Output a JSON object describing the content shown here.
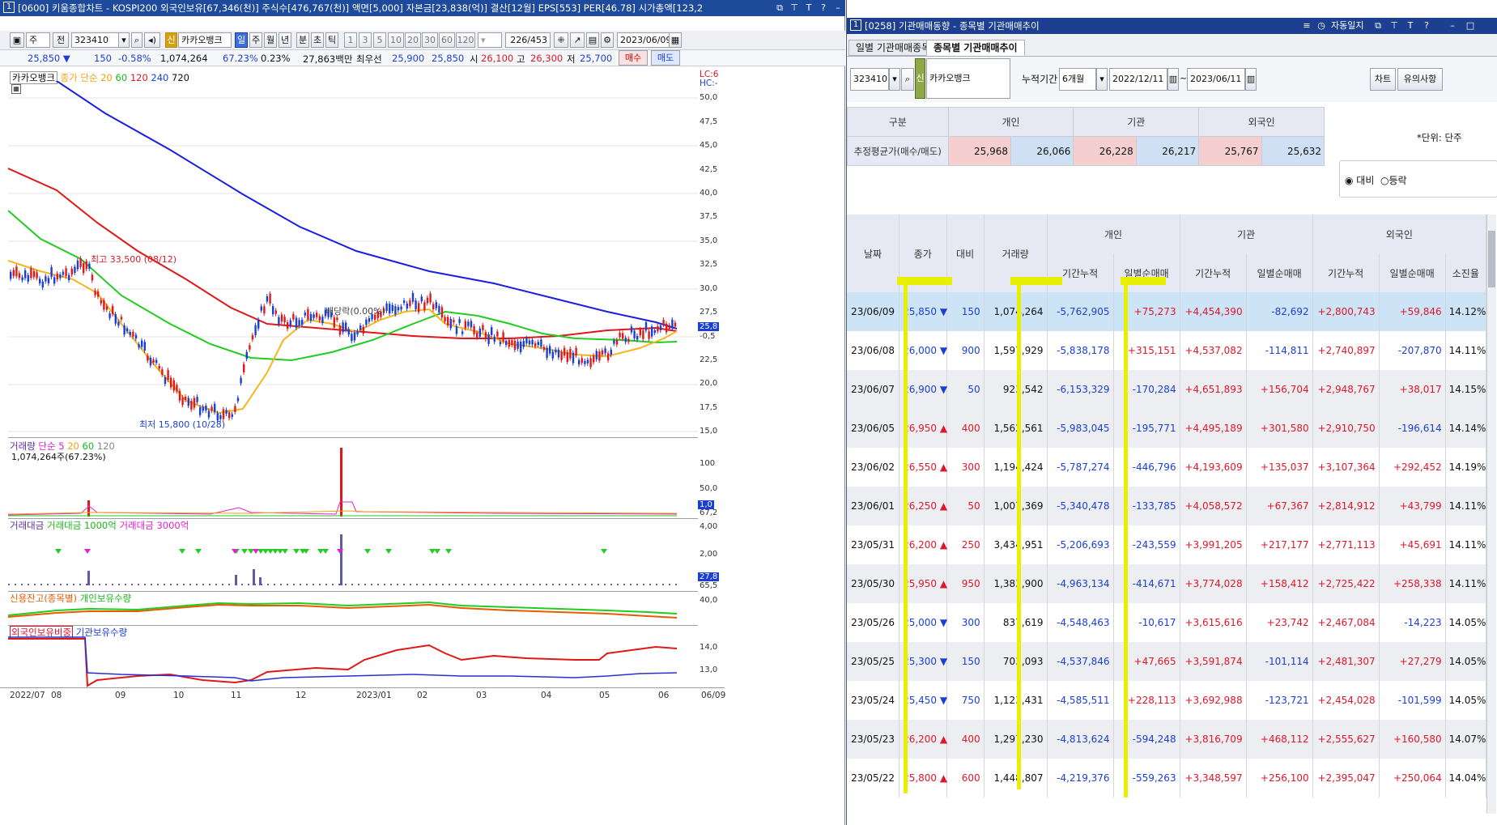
{
  "left_window": {
    "title": "[0600] 키움종합차트 - KOSPI200 외국인보유[67,346(천)] 주식수[476,767(천)] 액면[5,000] 자본금[23,838(억)] 결산[12월] EPS[553] PER[46.78] 시가총액[123,2",
    "badge": "1",
    "toolbar": {
      "type_sel": "주",
      "prev_label": "전",
      "code": "323410",
      "stock_name": "카카오뱅크",
      "sin_label": "신",
      "periods": [
        "일",
        "주",
        "월",
        "년",
        "분",
        "초",
        "틱"
      ],
      "active_period": "일",
      "intervals": [
        "1",
        "3",
        "5",
        "10",
        "20",
        "30",
        "60",
        "120"
      ],
      "count": "226/453",
      "date": "2023/06/09"
    },
    "quote": {
      "price": "25,850 ▼",
      "change": "150",
      "change_pct": "-0.58%",
      "volume": "1,074,264",
      "vol_ratio": "67.23%",
      "turnover": "0.23%",
      "amount": "27,863백만",
      "best_label": "최우선",
      "best_ask": "25,900",
      "best_bid": "25,850",
      "open_label": "시",
      "open": "26,100",
      "high_label": "고",
      "high": "26,300",
      "low_label": "저",
      "low": "25,700",
      "buy_label": "매수",
      "sell_label": "매도"
    },
    "legend_main": {
      "name": "카카오뱅크",
      "close_label": "종가",
      "method": "단순",
      "ma": [
        "20",
        "60",
        "120",
        "240",
        "720"
      ]
    },
    "annotations": {
      "high": "최고 33,500 (08/12)",
      "low": "최저 15,800 (10/28)",
      "dividend": "배당락(0.00%)"
    },
    "lc_label": "LC:6",
    "hc_label": "HC:-",
    "price_axis": [
      "50,0",
      "47,5",
      "45,0",
      "42,5",
      "40,0",
      "37,5",
      "35,0",
      "32,5",
      "30,0",
      "27,5",
      "25,0",
      "-0,5",
      "22,5",
      "20,0",
      "17,5",
      "15,0"
    ],
    "last_price_tag": "25,8",
    "volume_panel": {
      "label": "거래량",
      "method": "단순",
      "ma": [
        "5",
        "20",
        "60",
        "120"
      ],
      "value": "1,074,264주(67.23%)",
      "axis": [
        "100",
        "50,0",
        "1,0",
        "67,2"
      ]
    },
    "amount_panel": {
      "label1": "거래대금",
      "label2": "거래대금 1000억",
      "label3": "거래대금 3000억",
      "axis": [
        "4,00",
        "2,00",
        "27,8",
        "65,5"
      ]
    },
    "credit_panel": {
      "label1": "신용잔고(종목별)",
      "label2": "개인보유수량",
      "axis": [
        "40,0"
      ]
    },
    "foreign_panel": {
      "label1": "외국인보유비중",
      "label2": "기관보유수량",
      "axis": [
        "14,0",
        "13,0"
      ]
    },
    "x_axis": [
      "2022/07",
      "08",
      "09",
      "10",
      "11",
      "12",
      "2023/01",
      "02",
      "03",
      "04",
      "05",
      "06",
      "06/09"
    ]
  },
  "right_window": {
    "title": "[0258] 기관매매동향 - 종목별 기관매매추이",
    "badge": "1",
    "tabs": [
      "일별 기관매매종목",
      "종목별 기관매매추이"
    ],
    "active_tab": "종목별 기관매매추이",
    "menu_label": "자동일지",
    "code": "323410",
    "sin_label": "신",
    "stock_name": "카카오뱅크",
    "period_label": "누적기간",
    "period": "6개월",
    "start_date": "2022/12/11",
    "end_date": "2023/06/11",
    "tilde": "~",
    "chart_btn": "차트",
    "notice_btn": "유의사항",
    "unit_label": "*단위: 단주",
    "radio1": "대비",
    "radio2": "등락",
    "summary": {
      "header": [
        "구분",
        "개인",
        "기관",
        "외국인"
      ],
      "row_label": "추정평균가(매수/매도)",
      "values": [
        "25,968",
        "26,066",
        "26,228",
        "26,217",
        "25,767",
        "25,632"
      ]
    },
    "table": {
      "headers": [
        "날짜",
        "종가",
        "대비",
        "거래량",
        "개인",
        "기관",
        "외국인"
      ],
      "sub_headers": [
        "기간누적",
        "일별순매매",
        "기간누적",
        "일별순매매",
        "기간누적",
        "일별순매매",
        "소진율"
      ],
      "rows": [
        {
          "date": "23/06/09",
          "close": "25,850",
          "dir": "down",
          "chg": "150",
          "vol": "1,074,264",
          "p_cum": "-5,762,905",
          "p_day": "+75,273",
          "i_cum": "+4,454,390",
          "i_day": "-82,692",
          "f_cum": "+2,800,743",
          "f_day": "+59,846",
          "ratio": "14.12%"
        },
        {
          "date": "23/06/08",
          "close": "26,000",
          "dir": "down",
          "chg": "900",
          "vol": "1,597,929",
          "p_cum": "-5,838,178",
          "p_day": "+315,151",
          "i_cum": "+4,537,082",
          "i_day": "-114,811",
          "f_cum": "+2,740,897",
          "f_day": "-207,870",
          "ratio": "14.11%"
        },
        {
          "date": "23/06/07",
          "close": "26,900",
          "dir": "down",
          "chg": "50",
          "vol": "923,542",
          "p_cum": "-6,153,329",
          "p_day": "-170,284",
          "i_cum": "+4,651,893",
          "i_day": "+156,704",
          "f_cum": "+2,948,767",
          "f_day": "+38,017",
          "ratio": "14.15%"
        },
        {
          "date": "23/06/05",
          "close": "26,950",
          "dir": "up",
          "chg": "400",
          "vol": "1,562,561",
          "p_cum": "-5,983,045",
          "p_day": "-195,771",
          "i_cum": "+4,495,189",
          "i_day": "+301,580",
          "f_cum": "+2,910,750",
          "f_day": "-196,614",
          "ratio": "14.14%"
        },
        {
          "date": "23/06/02",
          "close": "26,550",
          "dir": "up",
          "chg": "300",
          "vol": "1,194,424",
          "p_cum": "-5,787,274",
          "p_day": "-446,796",
          "i_cum": "+4,193,609",
          "i_day": "+135,037",
          "f_cum": "+3,107,364",
          "f_day": "+292,452",
          "ratio": "14.19%"
        },
        {
          "date": "23/06/01",
          "close": "26,250",
          "dir": "up",
          "chg": "50",
          "vol": "1,007,369",
          "p_cum": "-5,340,478",
          "p_day": "-133,785",
          "i_cum": "+4,058,572",
          "i_day": "+67,367",
          "f_cum": "+2,814,912",
          "f_day": "+43,799",
          "ratio": "14.11%"
        },
        {
          "date": "23/05/31",
          "close": "26,200",
          "dir": "up",
          "chg": "250",
          "vol": "3,434,951",
          "p_cum": "-5,206,693",
          "p_day": "-243,559",
          "i_cum": "+3,991,205",
          "i_day": "+217,177",
          "f_cum": "+2,771,113",
          "f_day": "+45,691",
          "ratio": "14.11%"
        },
        {
          "date": "23/05/30",
          "close": "25,950",
          "dir": "up",
          "chg": "950",
          "vol": "1,383,900",
          "p_cum": "-4,963,134",
          "p_day": "-414,671",
          "i_cum": "+3,774,028",
          "i_day": "+158,412",
          "f_cum": "+2,725,422",
          "f_day": "+258,338",
          "ratio": "14.11%"
        },
        {
          "date": "23/05/26",
          "close": "25,000",
          "dir": "down",
          "chg": "300",
          "vol": "837,619",
          "p_cum": "-4,548,463",
          "p_day": "-10,617",
          "i_cum": "+3,615,616",
          "i_day": "+23,742",
          "f_cum": "+2,467,084",
          "f_day": "-14,223",
          "ratio": "14.05%"
        },
        {
          "date": "23/05/25",
          "close": "25,300",
          "dir": "down",
          "chg": "150",
          "vol": "703,093",
          "p_cum": "-4,537,846",
          "p_day": "+47,665",
          "i_cum": "+3,591,874",
          "i_day": "-101,114",
          "f_cum": "+2,481,307",
          "f_day": "+27,279",
          "ratio": "14.05%"
        },
        {
          "date": "23/05/24",
          "close": "25,450",
          "dir": "down",
          "chg": "750",
          "vol": "1,123,431",
          "p_cum": "-4,585,511",
          "p_day": "+228,113",
          "i_cum": "+3,692,988",
          "i_day": "-123,721",
          "f_cum": "+2,454,028",
          "f_day": "-101,599",
          "ratio": "14.05%"
        },
        {
          "date": "23/05/23",
          "close": "26,200",
          "dir": "up",
          "chg": "400",
          "vol": "1,297,230",
          "p_cum": "-4,813,624",
          "p_day": "-594,248",
          "i_cum": "+3,816,709",
          "i_day": "+468,112",
          "f_cum": "+2,555,627",
          "f_day": "+160,580",
          "ratio": "14.07%"
        },
        {
          "date": "23/05/22",
          "close": "25,800",
          "dir": "up",
          "chg": "600",
          "vol": "1,448,807",
          "p_cum": "-4,219,376",
          "p_day": "-559,263",
          "i_cum": "+3,348,597",
          "i_day": "+256,100",
          "f_cum": "+2,395,047",
          "f_day": "+250,064",
          "ratio": "14.04%"
        }
      ]
    }
  }
}
